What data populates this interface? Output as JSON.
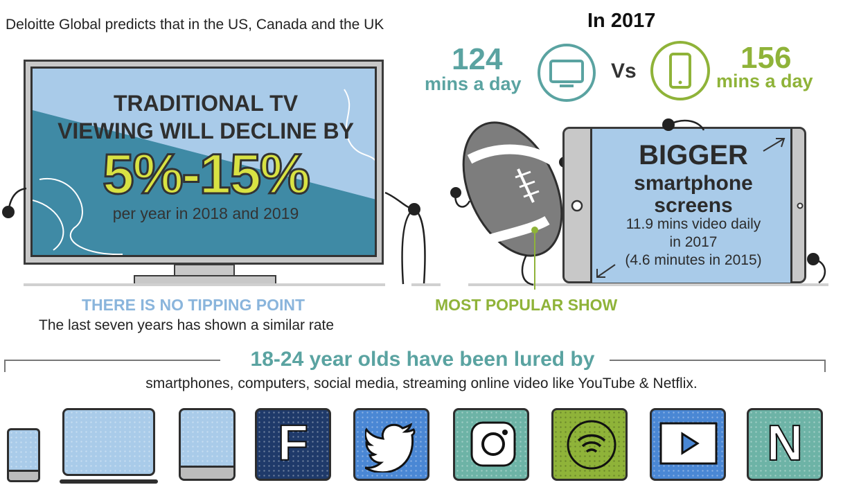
{
  "intro": "Deloitte Global predicts that in the US, Canada and the UK",
  "year": "In 2017",
  "tv_stat": {
    "value": "124",
    "unit": "mins a day"
  },
  "vs": "Vs",
  "phone_stat": {
    "value": "156",
    "unit": "mins a day"
  },
  "tv_screen": {
    "line1": "TRADITIONAL TV",
    "line2": "VIEWING WILL DECLINE BY",
    "percent": "5%-15%",
    "sub": "per year in 2018 and 2019"
  },
  "no_tipping": "THERE IS NO TIPPING POINT",
  "last_seven": "The last seven years has shown a similar rate",
  "most_popular": "MOST POPULAR SHOW",
  "phone_screen": {
    "line1": "BIGGER",
    "line2": "smartphone",
    "line3": "screens",
    "line4": "11.9 mins video daily",
    "line5": "in 2017",
    "line6": "(4.6 minutes in 2015)"
  },
  "lured_title": "18-24 year olds have been lured by",
  "lured_sub": "smartphones, computers, social media, streaming online video like YouTube & Netflix.",
  "tiles": [
    {
      "name": "smartphone-icon",
      "letter": ""
    },
    {
      "name": "laptop-icon",
      "letter": ""
    },
    {
      "name": "tablet-icon",
      "letter": ""
    },
    {
      "name": "facebook-icon",
      "letter": "F"
    },
    {
      "name": "twitter-icon",
      "letter": ""
    },
    {
      "name": "instagram-icon",
      "letter": ""
    },
    {
      "name": "wifi-icon",
      "letter": ""
    },
    {
      "name": "play-icon",
      "letter": ""
    },
    {
      "name": "netflix-icon",
      "letter": "N"
    }
  ],
  "colors": {
    "teal": "#5aa3a1",
    "green": "#8fb339",
    "light_blue": "#a9cbe9",
    "dark_teal": "#3f8aa5",
    "navy": "#1f3a6a",
    "yellow": "#d8e243"
  }
}
